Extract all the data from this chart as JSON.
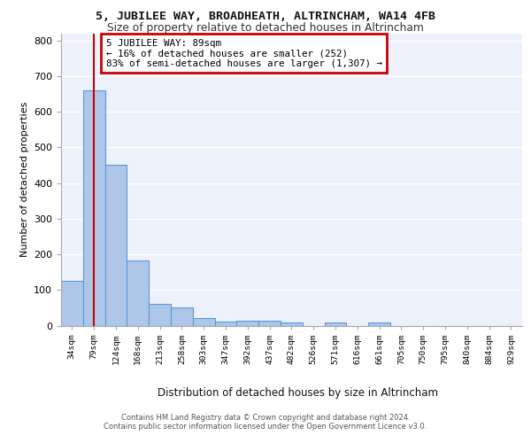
{
  "title": "5, JUBILEE WAY, BROADHEATH, ALTRINCHAM, WA14 4FB",
  "subtitle": "Size of property relative to detached houses in Altrincham",
  "xlabel": "Distribution of detached houses by size in Altrincham",
  "ylabel": "Number of detached properties",
  "categories": [
    "34sqm",
    "79sqm",
    "124sqm",
    "168sqm",
    "213sqm",
    "258sqm",
    "303sqm",
    "347sqm",
    "392sqm",
    "437sqm",
    "482sqm",
    "526sqm",
    "571sqm",
    "616sqm",
    "661sqm",
    "705sqm",
    "750sqm",
    "795sqm",
    "840sqm",
    "884sqm",
    "929sqm"
  ],
  "values": [
    125,
    660,
    450,
    182,
    62,
    50,
    22,
    10,
    14,
    13,
    8,
    0,
    8,
    0,
    9,
    0,
    0,
    0,
    0,
    0,
    0
  ],
  "bar_color": "#aec6e8",
  "bar_edge_color": "#5b9bd5",
  "bar_edge_width": 0.8,
  "property_line_index": 1,
  "annotation_text": "5 JUBILEE WAY: 89sqm\n← 16% of detached houses are smaller (252)\n83% of semi-detached houses are larger (1,307) →",
  "annotation_box_color": "#ffffff",
  "annotation_box_edge_color": "#cc0000",
  "ylim": [
    0,
    820
  ],
  "yticks": [
    0,
    100,
    200,
    300,
    400,
    500,
    600,
    700,
    800
  ],
  "bg_color": "#edf1fb",
  "grid_color": "#ffffff",
  "footer_line1": "Contains HM Land Registry data © Crown copyright and database right 2024.",
  "footer_line2": "Contains public sector information licensed under the Open Government Licence v3.0."
}
